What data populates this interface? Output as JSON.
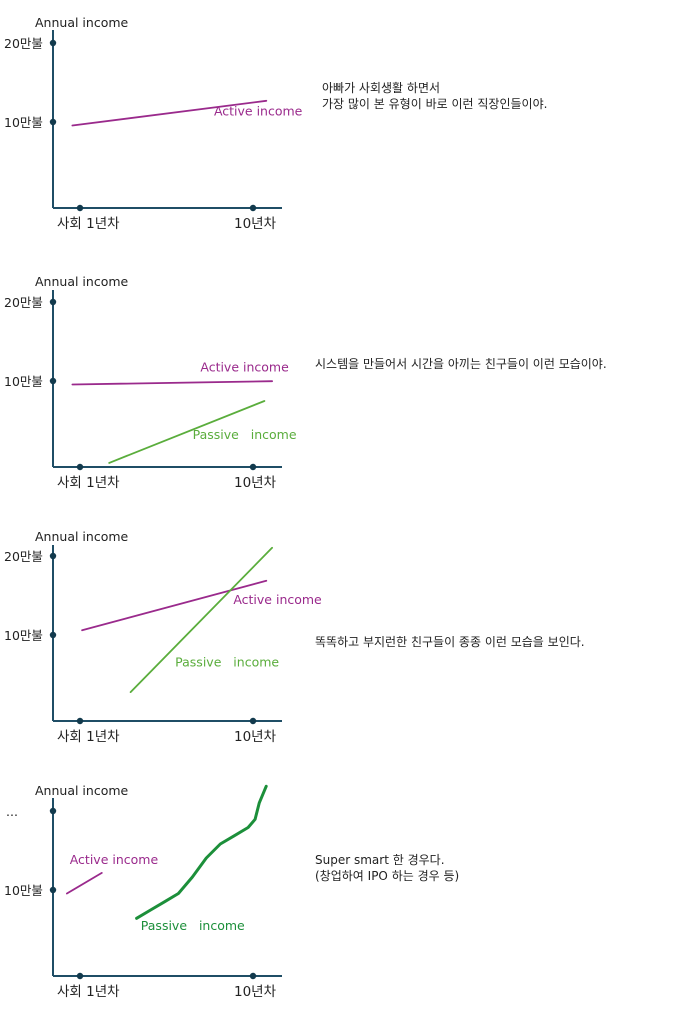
{
  "panels": [
    {
      "ylabel": "Annual income",
      "ytick_top": "20만불",
      "ytick_mid": "10만불",
      "xtick_left": "사회 1년차",
      "xtick_right": "10년차",
      "caption": [
        "아빠가 사회생활 하면서",
        "가장 많이 본 유형이 바로 이런 직장인들이야."
      ]
    },
    {
      "ylabel": "Annual income",
      "ytick_top": "20만불",
      "ytick_mid": "10만불",
      "xtick_left": "사회 1년차",
      "xtick_right": "10년차",
      "caption": [
        "시스템을 만들어서 시간을 아끼는 친구들이 이런 모습이야."
      ]
    },
    {
      "ylabel": "Annual income",
      "ytick_top": "20만불",
      "ytick_mid": "10만불",
      "xtick_left": "사회 1년차",
      "xtick_right": "10년차",
      "caption": [
        "똑똑하고 부지런한 친구들이 종종 이런 모습을 보인다."
      ]
    },
    {
      "ylabel": "Annual income",
      "ytick_top": "...",
      "ytick_mid": "10만불",
      "xtick_left": "사회 1년차",
      "xtick_right": "10년차",
      "caption": [
        "Super smart 한 경우다.",
        "(창업하여 IPO 하는 경우 등)"
      ]
    }
  ],
  "colors": {
    "axis": "#1f4e66",
    "active": "#9a2a8c",
    "passive": "#5aad3c",
    "passive_dark": "#1c8f3a"
  },
  "chart_data": [
    {
      "type": "line",
      "xlabel": "",
      "ylabel": "Annual income",
      "x_ticks": [
        "사회 1년차",
        "10년차"
      ],
      "y_ticks": [
        "10만불",
        "20만불"
      ],
      "series": [
        {
          "name": "Active income",
          "color": "#9a2a8c",
          "points": [
            [
              1.0,
              10.0
            ],
            [
              11.0,
              13.0
            ]
          ]
        }
      ],
      "label_pos": [
        {
          "x": 8.3,
          "y": 11.2
        }
      ]
    },
    {
      "type": "line",
      "xlabel": "",
      "ylabel": "Annual income",
      "x_ticks": [
        "사회 1년차",
        "10년차"
      ],
      "y_ticks": [
        "10만불",
        "20만불"
      ],
      "series": [
        {
          "name": "Active income",
          "color": "#9a2a8c",
          "points": [
            [
              1.0,
              10.0
            ],
            [
              11.3,
              10.4
            ]
          ]
        },
        {
          "name": "Passive   income",
          "color": "#5aad3c",
          "points": [
            [
              2.9,
              0.5
            ],
            [
              10.9,
              8.0
            ]
          ]
        }
      ],
      "label_pos": [
        {
          "x": 7.6,
          "y": 11.6
        },
        {
          "x": 7.2,
          "y": 3.4
        }
      ]
    },
    {
      "type": "line",
      "xlabel": "",
      "ylabel": "Annual income",
      "x_ticks": [
        "사회 1년차",
        "10년차"
      ],
      "y_ticks": [
        "10만불",
        "20만불"
      ],
      "series": [
        {
          "name": "Active income",
          "color": "#9a2a8c",
          "points": [
            [
              1.5,
              11.0
            ],
            [
              11.0,
              17.0
            ]
          ]
        },
        {
          "name": "Passive   income",
          "color": "#5aad3c",
          "points": [
            [
              4.0,
              3.5
            ],
            [
              11.3,
              21.0
            ]
          ]
        }
      ],
      "label_pos": [
        {
          "x": 9.3,
          "y": 14.2
        },
        {
          "x": 6.3,
          "y": 6.6
        }
      ]
    },
    {
      "type": "line",
      "xlabel": "",
      "ylabel": "Annual income",
      "x_ticks": [
        "사회 1년차",
        "10년차"
      ],
      "y_ticks": [
        "10만불",
        "..."
      ],
      "series": [
        {
          "name": "Active income",
          "color": "#9a2a8c",
          "points": [
            [
              1.0,
              10.0
            ],
            [
              3.5,
              12.5
            ]
          ]
        },
        {
          "name": "Passive   income",
          "color": "#1c8f3a",
          "points": [
            [
              6.0,
              7.0
            ],
            [
              7.0,
              8.0
            ],
            [
              8.0,
              9.0
            ],
            [
              9.0,
              10.0
            ],
            [
              10.0,
              12.0
            ],
            [
              11.0,
              14.3
            ],
            [
              12.0,
              16.0
            ],
            [
              13.0,
              17.0
            ],
            [
              14.0,
              18.0
            ],
            [
              14.5,
              19.0
            ],
            [
              14.8,
              21.0
            ],
            [
              15.3,
              23.0
            ]
          ]
        }
      ],
      "x_range": [
        0,
        16
      ],
      "label_pos": [
        {
          "x": 1.2,
          "y": 13.6
        },
        {
          "x": 6.3,
          "y": 5.6
        }
      ]
    }
  ]
}
